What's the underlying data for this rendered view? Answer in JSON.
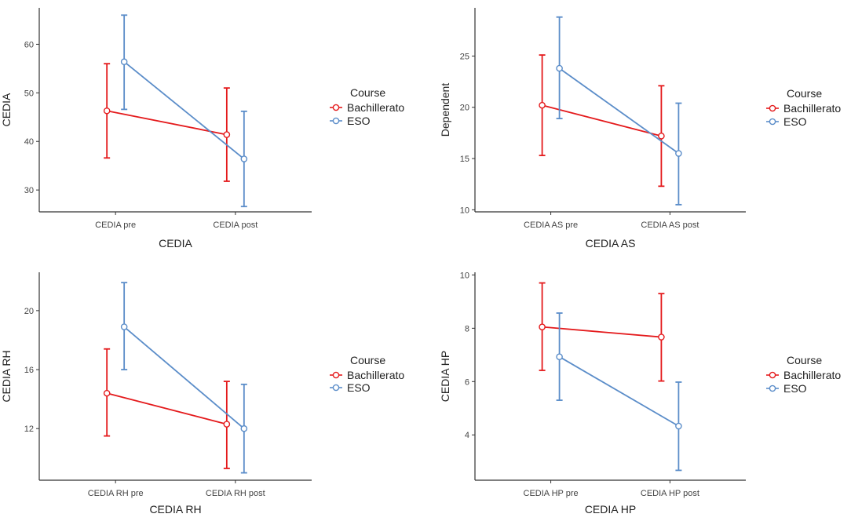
{
  "colors": {
    "bachillerato": "#e41a1c",
    "eso": "#5b8dc9",
    "axis": "#333333",
    "tick_label": "#444444"
  },
  "legend_title": "Course",
  "series_names": [
    "Bachillerato",
    "ESO"
  ],
  "chart_data": [
    {
      "type": "line",
      "title": "",
      "xlabel": "CEDIA",
      "ylabel": "CEDIA",
      "categories": [
        "CEDIA pre",
        "CEDIA post"
      ],
      "ylim": [
        25.5,
        67.5
      ],
      "yticks": [
        30,
        40,
        50,
        60
      ],
      "legend_title": "Course",
      "series": [
        {
          "name": "Bachillerato",
          "values": [
            46.3,
            41.4
          ],
          "lower": [
            36.6,
            31.8
          ],
          "upper": [
            56.0,
            51.0
          ]
        },
        {
          "name": "ESO",
          "values": [
            56.4,
            36.4
          ],
          "lower": [
            46.6,
            26.6
          ],
          "upper": [
            66.0,
            46.2
          ]
        }
      ]
    },
    {
      "type": "line",
      "title": "",
      "xlabel": "CEDIA AS",
      "ylabel": "Dependent",
      "categories": [
        "CEDIA AS pre",
        "CEDIA AS post"
      ],
      "ylim": [
        9.8,
        29.7
      ],
      "yticks": [
        10,
        15,
        20,
        25
      ],
      "legend_title": "Course",
      "series": [
        {
          "name": "Bachillerato",
          "values": [
            20.2,
            17.2
          ],
          "lower": [
            15.3,
            12.3
          ],
          "upper": [
            25.1,
            22.1
          ]
        },
        {
          "name": "ESO",
          "values": [
            23.8,
            15.5
          ],
          "lower": [
            18.9,
            10.5
          ],
          "upper": [
            28.8,
            20.4
          ]
        }
      ]
    },
    {
      "type": "line",
      "title": "",
      "xlabel": "CEDIA RH",
      "ylabel": "CEDIA RH",
      "categories": [
        "CEDIA RH pre",
        "CEDIA RH post"
      ],
      "ylim": [
        8.5,
        22.6
      ],
      "yticks": [
        12,
        16,
        20
      ],
      "legend_title": "Course",
      "series": [
        {
          "name": "Bachillerato",
          "values": [
            14.4,
            12.3
          ],
          "lower": [
            11.5,
            9.3
          ],
          "upper": [
            17.4,
            15.2
          ]
        },
        {
          "name": "ESO",
          "values": [
            18.9,
            12.0
          ],
          "lower": [
            16.0,
            9.0
          ],
          "upper": [
            21.9,
            15.0
          ]
        }
      ]
    },
    {
      "type": "line",
      "title": "",
      "xlabel": "CEDIA HP",
      "ylabel": "CEDIA HP",
      "categories": [
        "CEDIA HP pre",
        "CEDIA HP post"
      ],
      "ylim": [
        2.3,
        10.1
      ],
      "yticks": [
        4,
        6,
        8,
        10
      ],
      "legend_title": "Course",
      "series": [
        {
          "name": "Bachillerato",
          "values": [
            8.05,
            7.67
          ],
          "lower": [
            6.42,
            6.02
          ],
          "upper": [
            9.7,
            9.3
          ]
        },
        {
          "name": "ESO",
          "values": [
            6.93,
            4.33
          ],
          "lower": [
            5.3,
            2.67
          ],
          "upper": [
            8.57,
            5.98
          ]
        }
      ]
    }
  ]
}
